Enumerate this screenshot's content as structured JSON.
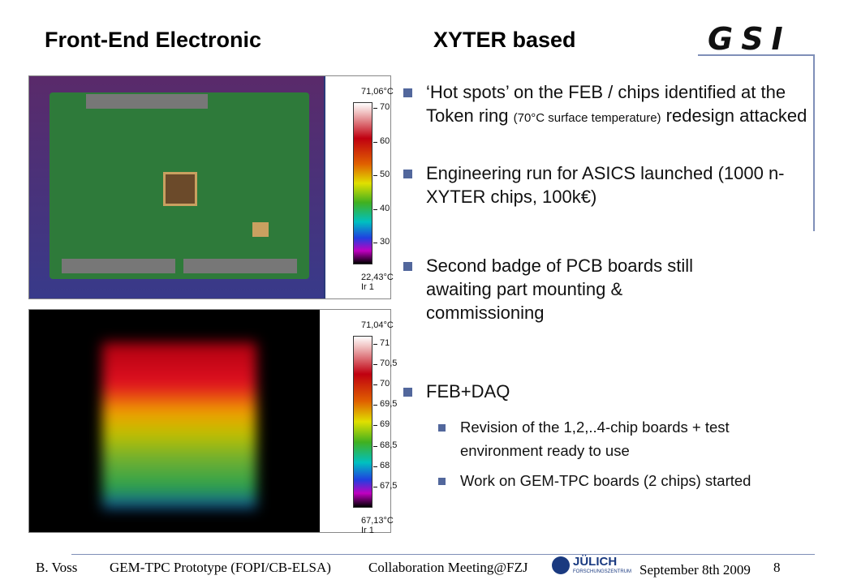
{
  "header": {
    "title_left": "Front-End Electronic",
    "title_right": "XYTER based",
    "logo": "GSI"
  },
  "images": [
    {
      "scale_max": "71,06°C",
      "ticks": [
        "70",
        "60",
        "50",
        "40",
        "30"
      ],
      "scale_min": "22,43°C",
      "footer": "Ir 1"
    },
    {
      "scale_max": "71,04°C",
      "ticks": [
        "71",
        "70,5",
        "70",
        "69,5",
        "69",
        "68,5",
        "68",
        "67,5"
      ],
      "scale_min": "67,13°C",
      "footer": "Ir 1"
    }
  ],
  "bullets": [
    {
      "parts": [
        "‘Hot spots’ on the FEB / chips identified at the Token ring ",
        "(70°C surface temperature)",
        " redesign attacked"
      ]
    },
    {
      "text": "Engineering run for ASICS launched (1000 n-XYTER chips, 100k€)"
    },
    {
      "text": "Second badge of PCB boards still awaiting part mounting & commissioning"
    },
    {
      "text": "FEB+DAQ",
      "sub": [
        "Revision of the 1,2,..4-chip boards + test environment ready to use",
        "Work on GEM-TPC boards (2 chips) started"
      ]
    }
  ],
  "footer": {
    "author": "B. Voss",
    "event": "GEM-TPC Prototype (FOPI/CB-ELSA)",
    "meeting": "Collaboration Meeting@FZJ",
    "logo": "JÜLICH",
    "logo_sub": "FORSCHUNGSZENTRUM",
    "date": "September 8th 2009",
    "page": "8"
  }
}
